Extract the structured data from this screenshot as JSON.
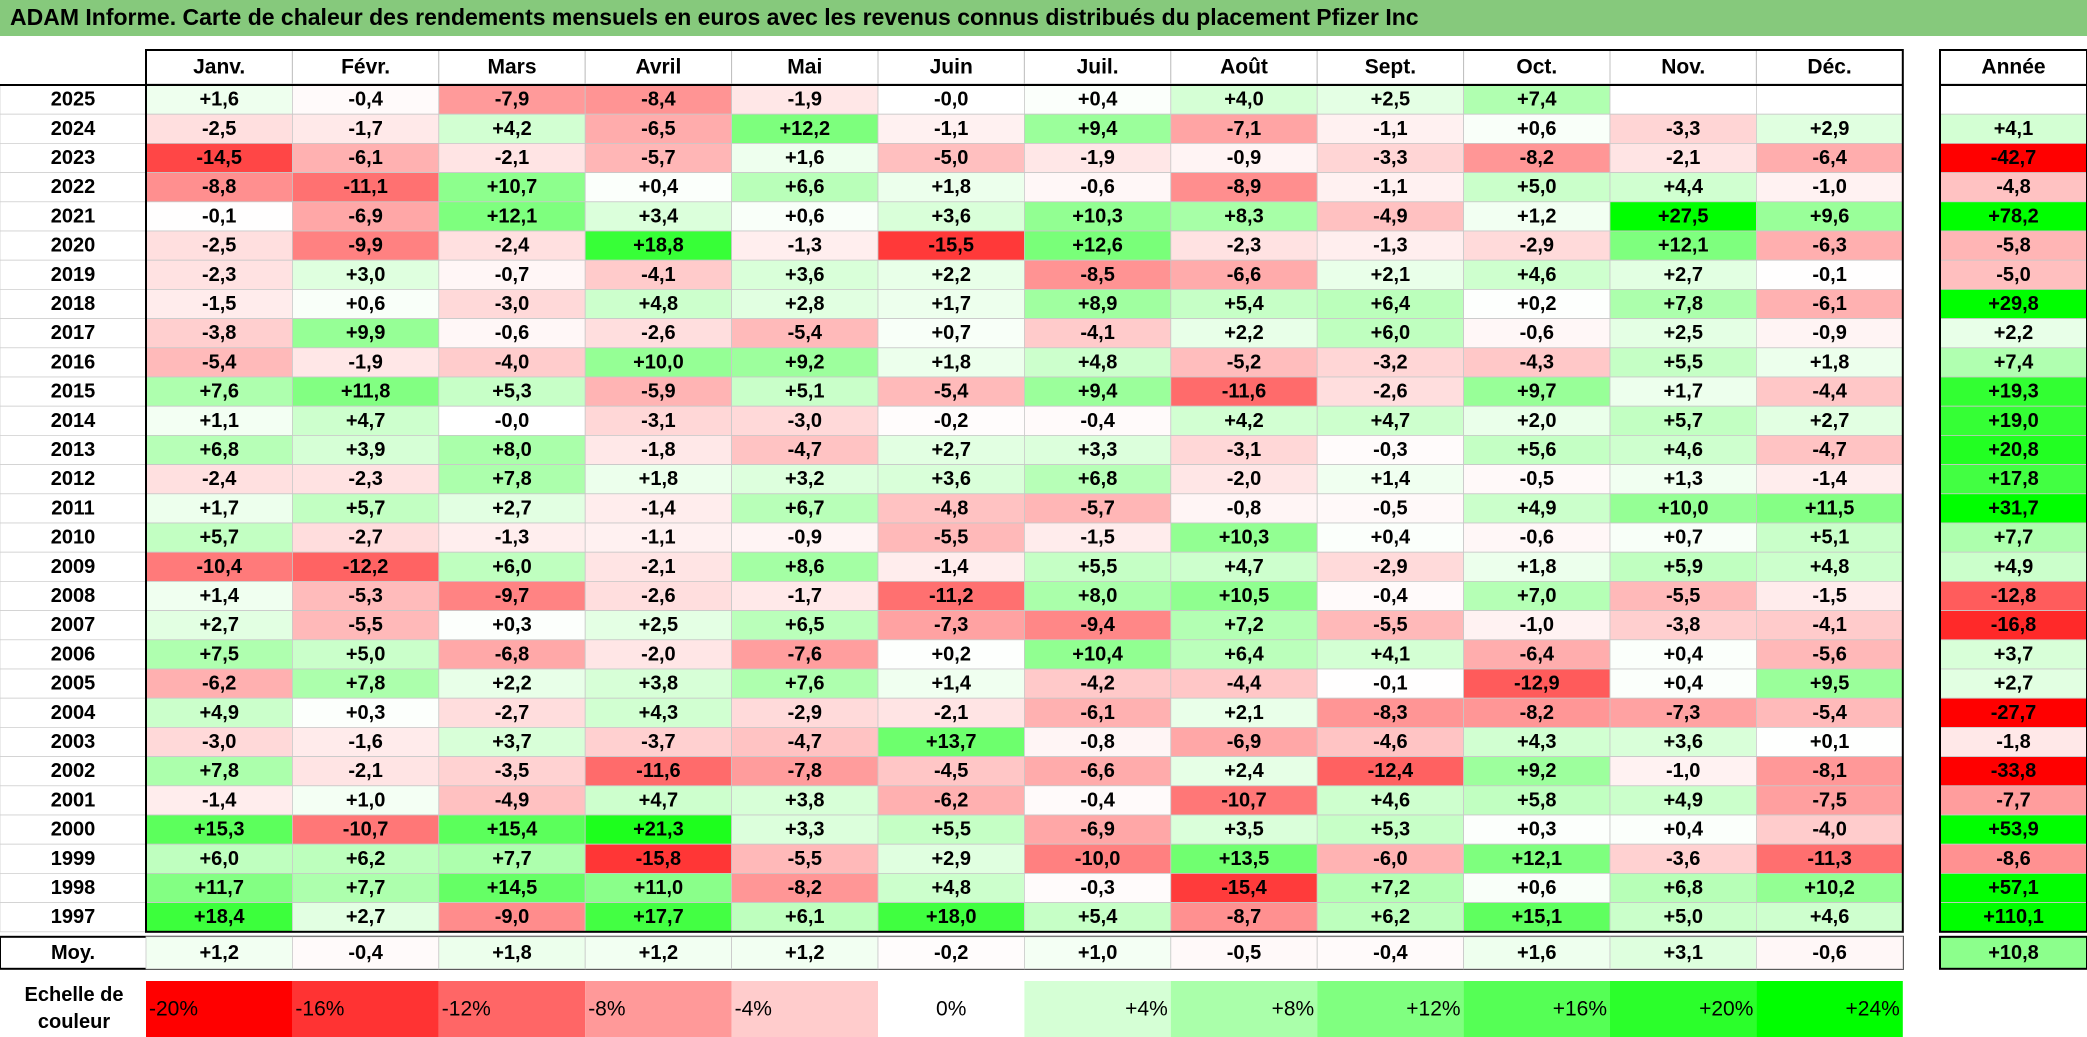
{
  "title": "ADAM Informe. Carte de chaleur des rendements mensuels en euros avec les revenus connus distribués du placement Pfizer Inc",
  "chart_data": {
    "type": "heatmap",
    "title": "ADAM Informe. Carte de chaleur des rendements mensuels en euros avec les revenus connus distribués du placement Pfizer Inc",
    "months": [
      "Janv.",
      "Févr.",
      "Mars",
      "Avril",
      "Mai",
      "Juin",
      "Juil.",
      "Août",
      "Sept.",
      "Oct.",
      "Nov.",
      "Déc."
    ],
    "year_header": "Année",
    "rows": [
      {
        "year": "2025",
        "values": [
          "+1,6",
          "-0,4",
          "-7,9",
          "-8,4",
          "-1,9",
          "-0,0",
          "+0,4",
          "+4,0",
          "+2,5",
          "+7,4",
          "",
          ""
        ],
        "annual": ""
      },
      {
        "year": "2024",
        "values": [
          "-2,5",
          "-1,7",
          "+4,2",
          "-6,5",
          "+12,2",
          "-1,1",
          "+9,4",
          "-7,1",
          "-1,1",
          "+0,6",
          "-3,3",
          "+2,9"
        ],
        "annual": "+4,1"
      },
      {
        "year": "2023",
        "values": [
          "-14,5",
          "-6,1",
          "-2,1",
          "-5,7",
          "+1,6",
          "-5,0",
          "-1,9",
          "-0,9",
          "-3,3",
          "-8,2",
          "-2,1",
          "-6,4"
        ],
        "annual": "-42,7"
      },
      {
        "year": "2022",
        "values": [
          "-8,8",
          "-11,1",
          "+10,7",
          "+0,4",
          "+6,6",
          "+1,8",
          "-0,6",
          "-8,9",
          "-1,1",
          "+5,0",
          "+4,4",
          "-1,0"
        ],
        "annual": "-4,8"
      },
      {
        "year": "2021",
        "values": [
          "-0,1",
          "-6,9",
          "+12,1",
          "+3,4",
          "+0,6",
          "+3,6",
          "+10,3",
          "+8,3",
          "-4,9",
          "+1,2",
          "+27,5",
          "+9,6"
        ],
        "annual": "+78,2"
      },
      {
        "year": "2020",
        "values": [
          "-2,5",
          "-9,9",
          "-2,4",
          "+18,8",
          "-1,3",
          "-15,5",
          "+12,6",
          "-2,3",
          "-1,3",
          "-2,9",
          "+12,1",
          "-6,3"
        ],
        "annual": "-5,8"
      },
      {
        "year": "2019",
        "values": [
          "-2,3",
          "+3,0",
          "-0,7",
          "-4,1",
          "+3,6",
          "+2,2",
          "-8,5",
          "-6,6",
          "+2,1",
          "+4,6",
          "+2,7",
          "-0,1"
        ],
        "annual": "-5,0"
      },
      {
        "year": "2018",
        "values": [
          "-1,5",
          "+0,6",
          "-3,0",
          "+4,8",
          "+2,8",
          "+1,7",
          "+8,9",
          "+5,4",
          "+6,4",
          "+0,2",
          "+7,8",
          "-6,1"
        ],
        "annual": "+29,8"
      },
      {
        "year": "2017",
        "values": [
          "-3,8",
          "+9,9",
          "-0,6",
          "-2,6",
          "-5,4",
          "+0,7",
          "-4,1",
          "+2,2",
          "+6,0",
          "-0,6",
          "+2,5",
          "-0,9"
        ],
        "annual": "+2,2"
      },
      {
        "year": "2016",
        "values": [
          "-5,4",
          "-1,9",
          "-4,0",
          "+10,0",
          "+9,2",
          "+1,8",
          "+4,8",
          "-5,2",
          "-3,2",
          "-4,3",
          "+5,5",
          "+1,8"
        ],
        "annual": "+7,4"
      },
      {
        "year": "2015",
        "values": [
          "+7,6",
          "+11,8",
          "+5,3",
          "-5,9",
          "+5,1",
          "-5,4",
          "+9,4",
          "-11,6",
          "-2,6",
          "+9,7",
          "+1,7",
          "-4,4"
        ],
        "annual": "+19,3"
      },
      {
        "year": "2014",
        "values": [
          "+1,1",
          "+4,7",
          "-0,0",
          "-3,1",
          "-3,0",
          "-0,2",
          "-0,4",
          "+4,2",
          "+4,7",
          "+2,0",
          "+5,7",
          "+2,7"
        ],
        "annual": "+19,0"
      },
      {
        "year": "2013",
        "values": [
          "+6,8",
          "+3,9",
          "+8,0",
          "-1,8",
          "-4,7",
          "+2,7",
          "+3,3",
          "-3,1",
          "-0,3",
          "+5,6",
          "+4,6",
          "-4,7"
        ],
        "annual": "+20,8"
      },
      {
        "year": "2012",
        "values": [
          "-2,4",
          "-2,3",
          "+7,8",
          "+1,8",
          "+3,2",
          "+3,6",
          "+6,8",
          "-2,0",
          "+1,4",
          "-0,5",
          "+1,3",
          "-1,4"
        ],
        "annual": "+17,8"
      },
      {
        "year": "2011",
        "values": [
          "+1,7",
          "+5,7",
          "+2,7",
          "-1,4",
          "+6,7",
          "-4,8",
          "-5,7",
          "-0,8",
          "-0,5",
          "+4,9",
          "+10,0",
          "+11,5"
        ],
        "annual": "+31,7"
      },
      {
        "year": "2010",
        "values": [
          "+5,7",
          "-2,7",
          "-1,3",
          "-1,1",
          "-0,9",
          "-5,5",
          "-1,5",
          "+10,3",
          "+0,4",
          "-0,6",
          "+0,7",
          "+5,1"
        ],
        "annual": "+7,7"
      },
      {
        "year": "2009",
        "values": [
          "-10,4",
          "-12,2",
          "+6,0",
          "-2,1",
          "+8,6",
          "-1,4",
          "+5,5",
          "+4,7",
          "-2,9",
          "+1,8",
          "+5,9",
          "+4,8"
        ],
        "annual": "+4,9"
      },
      {
        "year": "2008",
        "values": [
          "+1,4",
          "-5,3",
          "-9,7",
          "-2,6",
          "-1,7",
          "-11,2",
          "+8,0",
          "+10,5",
          "-0,4",
          "+7,0",
          "-5,5",
          "-1,5"
        ],
        "annual": "-12,8"
      },
      {
        "year": "2007",
        "values": [
          "+2,7",
          "-5,5",
          "+0,3",
          "+2,5",
          "+6,5",
          "-7,3",
          "-9,4",
          "+7,2",
          "-5,5",
          "-1,0",
          "-3,8",
          "-4,1"
        ],
        "annual": "-16,8"
      },
      {
        "year": "2006",
        "values": [
          "+7,5",
          "+5,0",
          "-6,8",
          "-2,0",
          "-7,6",
          "+0,2",
          "+10,4",
          "+6,4",
          "+4,1",
          "-6,4",
          "+0,4",
          "-5,6"
        ],
        "annual": "+3,7"
      },
      {
        "year": "2005",
        "values": [
          "-6,2",
          "+7,8",
          "+2,2",
          "+3,8",
          "+7,6",
          "+1,4",
          "-4,2",
          "-4,4",
          "-0,1",
          "-12,9",
          "+0,4",
          "+9,5"
        ],
        "annual": "+2,7"
      },
      {
        "year": "2004",
        "values": [
          "+4,9",
          "+0,3",
          "-2,7",
          "+4,3",
          "-2,9",
          "-2,1",
          "-6,1",
          "+2,1",
          "-8,3",
          "-8,2",
          "-7,3",
          "-5,4"
        ],
        "annual": "-27,7"
      },
      {
        "year": "2003",
        "values": [
          "-3,0",
          "-1,6",
          "+3,7",
          "-3,7",
          "-4,7",
          "+13,7",
          "-0,8",
          "-6,9",
          "-4,6",
          "+4,3",
          "+3,6",
          "+0,1"
        ],
        "annual": "-1,8"
      },
      {
        "year": "2002",
        "values": [
          "+7,8",
          "-2,1",
          "-3,5",
          "-11,6",
          "-7,8",
          "-4,5",
          "-6,6",
          "+2,4",
          "-12,4",
          "+9,2",
          "-1,0",
          "-8,1"
        ],
        "annual": "-33,8"
      },
      {
        "year": "2001",
        "values": [
          "-1,4",
          "+1,0",
          "-4,9",
          "+4,7",
          "+3,8",
          "-6,2",
          "-0,4",
          "-10,7",
          "+4,6",
          "+5,8",
          "+4,9",
          "-7,5"
        ],
        "annual": "-7,7"
      },
      {
        "year": "2000",
        "values": [
          "+15,3",
          "-10,7",
          "+15,4",
          "+21,3",
          "+3,3",
          "+5,5",
          "-6,9",
          "+3,5",
          "+5,3",
          "+0,3",
          "+0,4",
          "-4,0"
        ],
        "annual": "+53,9"
      },
      {
        "year": "1999",
        "values": [
          "+6,0",
          "+6,2",
          "+7,7",
          "-15,8",
          "-5,5",
          "+2,9",
          "-10,0",
          "+13,5",
          "-6,0",
          "+12,1",
          "-3,6",
          "-11,3"
        ],
        "annual": "-8,6"
      },
      {
        "year": "1998",
        "values": [
          "+11,7",
          "+7,7",
          "+14,5",
          "+11,0",
          "-8,2",
          "+4,8",
          "-0,3",
          "-15,4",
          "+7,2",
          "+0,6",
          "+6,8",
          "+10,2"
        ],
        "annual": "+57,1"
      },
      {
        "year": "1997",
        "values": [
          "+18,4",
          "+2,7",
          "-9,0",
          "+17,7",
          "+6,1",
          "+18,0",
          "+5,4",
          "-8,7",
          "+6,2",
          "+15,1",
          "+5,0",
          "+4,6"
        ],
        "annual": "+110,1"
      }
    ],
    "average": {
      "label": "Moy.",
      "values": [
        "+1,2",
        "-0,4",
        "+1,8",
        "+1,2",
        "+1,2",
        "-0,2",
        "+1,0",
        "-0,5",
        "-0,4",
        "+1,6",
        "+3,1",
        "-0,6"
      ],
      "annual": "+10,8"
    },
    "scale": {
      "label_line1": "Echelle de",
      "label_line2": "couleur",
      "items": [
        {
          "label": "-20%",
          "value": -20,
          "color": "#ff0000"
        },
        {
          "label": "-16%",
          "value": -16,
          "color": "#ff3333"
        },
        {
          "label": "-12%",
          "value": -12,
          "color": "#ff6666"
        },
        {
          "label": "-8%",
          "value": -8,
          "color": "#ff9999"
        },
        {
          "label": "-4%",
          "value": -4,
          "color": "#ffcccc"
        },
        {
          "label": "0%",
          "value": 0,
          "color": "#ffffff"
        },
        {
          "label": "+4%",
          "value": 4,
          "color": "#d5ffd5"
        },
        {
          "label": "+8%",
          "value": 8,
          "color": "#aaffaa"
        },
        {
          "label": "+12%",
          "value": 12,
          "color": "#80ff80"
        },
        {
          "label": "+16%",
          "value": 16,
          "color": "#55ff55"
        },
        {
          "label": "+20%",
          "value": 20,
          "color": "#2bff2b"
        },
        {
          "label": "+24%",
          "value": 24,
          "color": "#00ff00"
        }
      ]
    },
    "colors": {
      "title_bar": "#86c97c",
      "negative_max": "#ff0000",
      "neutral": "#ffffff",
      "positive_max": "#00ff00"
    }
  }
}
